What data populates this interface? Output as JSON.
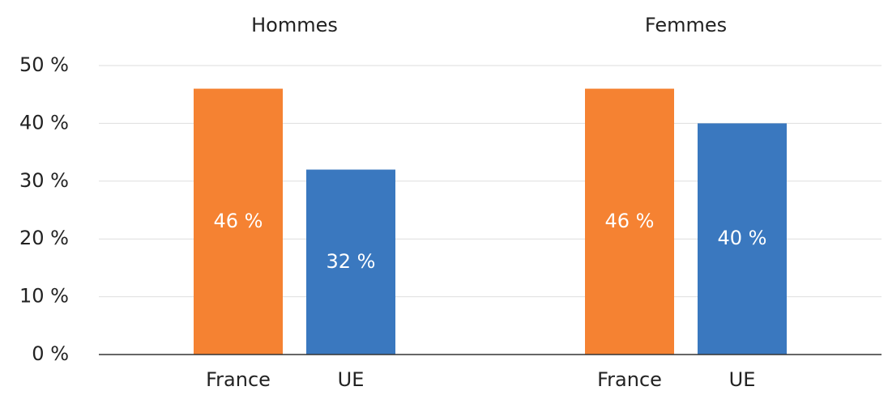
{
  "chart_data": {
    "type": "bar",
    "groups": [
      "Hommes",
      "Femmes"
    ],
    "series": [
      {
        "name": "France",
        "color": "#f58232",
        "values": [
          46,
          46
        ],
        "value_labels": [
          "46 %",
          "46 %"
        ]
      },
      {
        "name": "UE",
        "color": "#3a78bf",
        "values": [
          32,
          40
        ],
        "value_labels": [
          "32 %",
          "40 %"
        ]
      }
    ],
    "ylim": [
      0,
      50
    ],
    "yticks": [
      {
        "value": 0,
        "label": "0 %"
      },
      {
        "value": 10,
        "label": "10 %"
      },
      {
        "value": 20,
        "label": "20 %"
      },
      {
        "value": 30,
        "label": "30 %"
      },
      {
        "value": 40,
        "label": "40 %"
      },
      {
        "value": 50,
        "label": "50 %"
      }
    ],
    "grid": true
  }
}
